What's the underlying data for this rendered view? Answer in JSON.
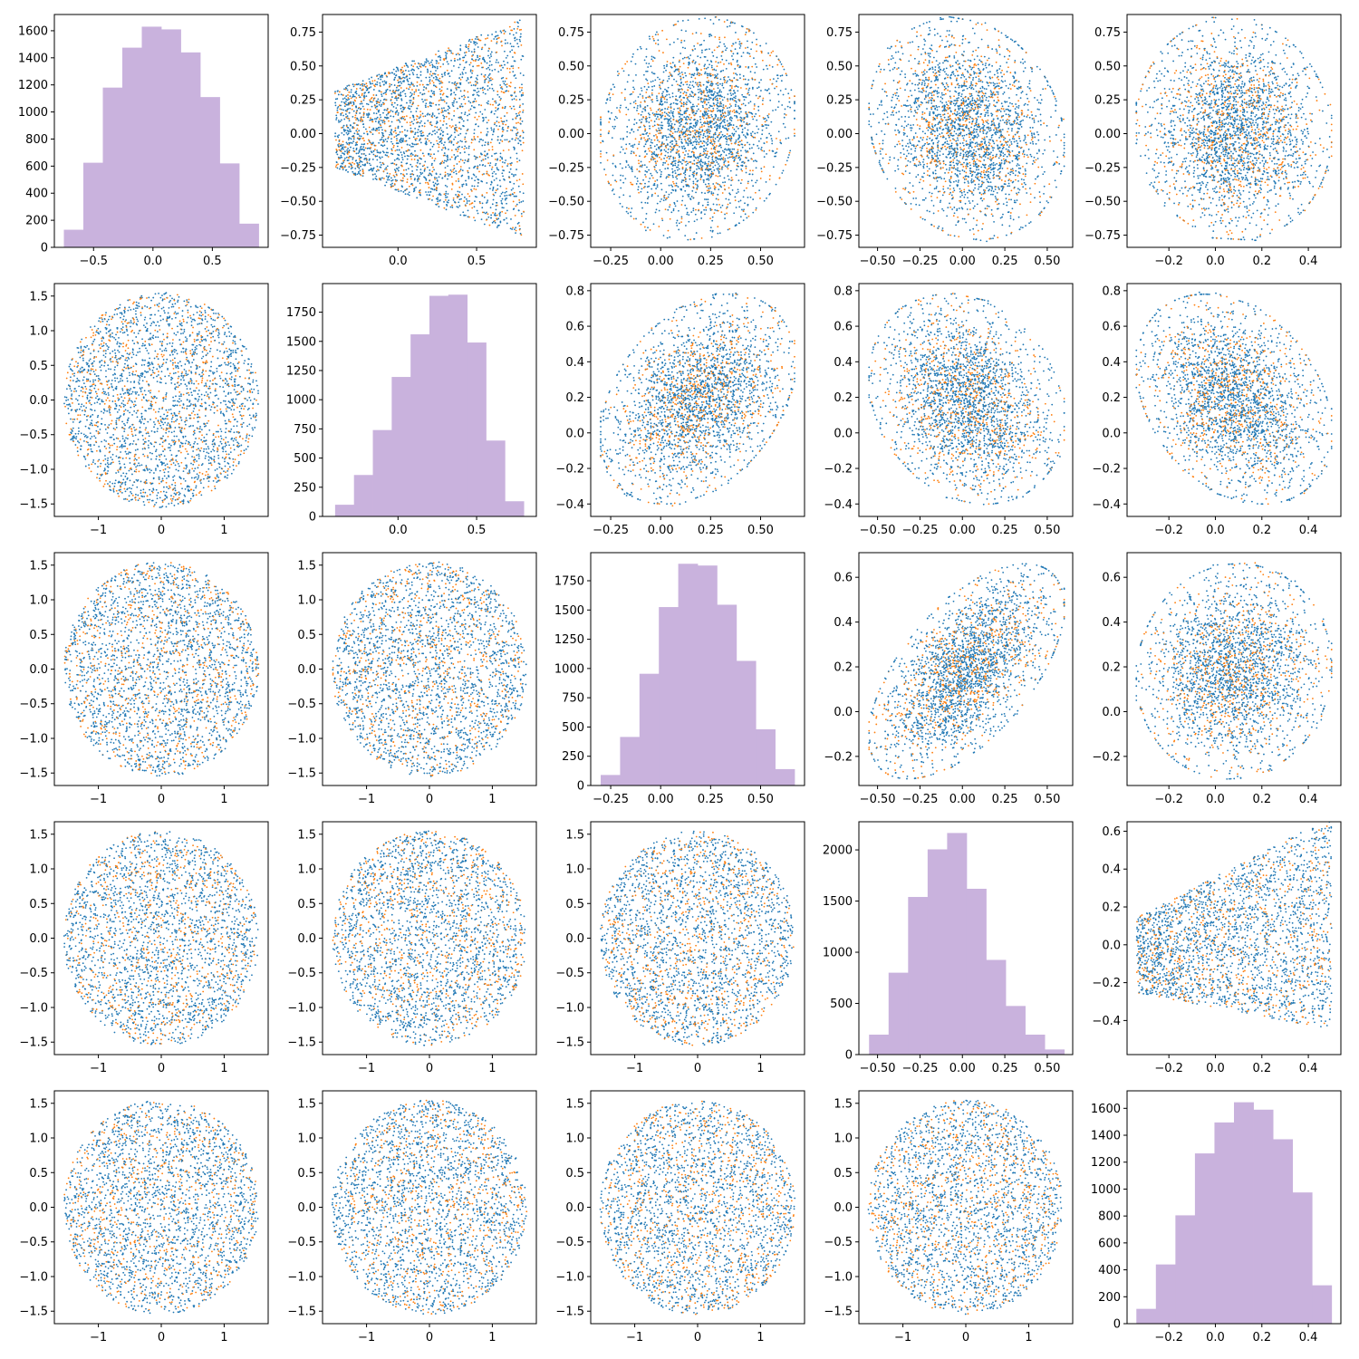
{
  "colors": {
    "series_a": "#1f77b4",
    "series_b": "#ff7f0e",
    "hist": "#c9b2dd",
    "axes": "#000000",
    "background": "#ffffff"
  },
  "figure": {
    "rows": 5,
    "cols": 5,
    "layout": "pairplot: histograms on the diagonal, scatter plots off-diagonal, two colored series",
    "grid": false,
    "legend": "none"
  },
  "chart_data": [
    {
      "row": 0,
      "col": 0,
      "type": "bar",
      "histogram": true,
      "bin_edges": [
        -0.75,
        -0.586,
        -0.422,
        -0.258,
        -0.094,
        0.07,
        0.234,
        0.398,
        0.562,
        0.726,
        0.89
      ],
      "values": [
        130,
        625,
        1180,
        1475,
        1630,
        1610,
        1440,
        1110,
        620,
        175
      ],
      "xticks": [
        -0.5,
        0.0,
        0.5
      ],
      "yticks": [
        0,
        200,
        400,
        600,
        800,
        1000,
        1200,
        1400,
        1600
      ],
      "xlim": [
        -0.83,
        0.97
      ],
      "ylim": [
        0,
        1720
      ]
    },
    {
      "row": 0,
      "col": 1,
      "type": "scatter",
      "shape": "fan",
      "xticks": [
        0.0,
        0.5
      ],
      "yticks": [
        -0.75,
        -0.5,
        -0.25,
        0.0,
        0.25,
        0.5,
        0.75
      ],
      "xlim": [
        -0.48,
        0.88
      ],
      "ylim": [
        -0.84,
        0.88
      ],
      "x_range": [
        -0.4,
        0.8
      ],
      "y_range": [
        -0.78,
        0.85
      ],
      "corr": 0
    },
    {
      "row": 0,
      "col": 2,
      "type": "scatter",
      "shape": "blob",
      "xticks": [
        -0.25,
        0.0,
        0.25,
        0.5
      ],
      "yticks": [
        -0.75,
        -0.5,
        -0.25,
        0.0,
        0.25,
        0.5,
        0.75
      ],
      "xlim": [
        -0.35,
        0.72
      ],
      "ylim": [
        -0.84,
        0.88
      ],
      "x_range": [
        -0.3,
        0.67
      ],
      "y_range": [
        -0.78,
        0.85
      ],
      "corr": 0.1
    },
    {
      "row": 0,
      "col": 3,
      "type": "scatter",
      "shape": "blob",
      "xticks": [
        -0.5,
        -0.25,
        0.0,
        0.25,
        0.5
      ],
      "yticks": [
        -0.75,
        -0.5,
        -0.25,
        0.0,
        0.25,
        0.5,
        0.75
      ],
      "xlim": [
        -0.61,
        0.65
      ],
      "ylim": [
        -0.84,
        0.88
      ],
      "x_range": [
        -0.55,
        0.6
      ],
      "y_range": [
        -0.78,
        0.85
      ],
      "corr": -0.15
    },
    {
      "row": 0,
      "col": 4,
      "type": "scatter",
      "shape": "blob",
      "xticks": [
        -0.2,
        0.0,
        0.2,
        0.4
      ],
      "yticks": [
        -0.75,
        -0.5,
        -0.25,
        0.0,
        0.25,
        0.5,
        0.75
      ],
      "xlim": [
        -0.38,
        0.54
      ],
      "ylim": [
        -0.84,
        0.88
      ],
      "x_range": [
        -0.34,
        0.5
      ],
      "y_range": [
        -0.78,
        0.85
      ],
      "corr": -0.05
    },
    {
      "row": 1,
      "col": 0,
      "type": "scatter",
      "shape": "disk",
      "xticks": [
        -1,
        0,
        1
      ],
      "yticks": [
        -1.5,
        -1.0,
        -0.5,
        0.0,
        0.5,
        1.0,
        1.5
      ],
      "xlim": [
        -1.7,
        1.7
      ],
      "ylim": [
        -1.68,
        1.68
      ],
      "x_range": [
        -1.55,
        1.55
      ],
      "y_range": [
        -1.55,
        1.55
      ],
      "corr": 0
    },
    {
      "row": 1,
      "col": 1,
      "type": "bar",
      "histogram": true,
      "bin_edges": [
        -0.4,
        -0.28,
        -0.16,
        -0.04,
        0.08,
        0.2,
        0.32,
        0.44,
        0.56,
        0.68,
        0.8
      ],
      "values": [
        100,
        355,
        740,
        1195,
        1560,
        1890,
        1900,
        1490,
        650,
        130
      ],
      "xticks": [
        0.0,
        0.5
      ],
      "yticks": [
        0,
        250,
        500,
        750,
        1000,
        1250,
        1500,
        1750
      ],
      "xlim": [
        -0.48,
        0.88
      ],
      "ylim": [
        0,
        1995
      ]
    },
    {
      "row": 1,
      "col": 2,
      "type": "scatter",
      "shape": "blob",
      "xticks": [
        -0.25,
        0.0,
        0.25,
        0.5
      ],
      "yticks": [
        -0.4,
        -0.2,
        0.0,
        0.2,
        0.4,
        0.6,
        0.8
      ],
      "xlim": [
        -0.35,
        0.72
      ],
      "ylim": [
        -0.47,
        0.84
      ],
      "x_range": [
        -0.3,
        0.67
      ],
      "y_range": [
        -0.4,
        0.78
      ],
      "corr": 0.35
    },
    {
      "row": 1,
      "col": 3,
      "type": "scatter",
      "shape": "blob",
      "xticks": [
        -0.5,
        -0.25,
        0.0,
        0.25,
        0.5
      ],
      "yticks": [
        -0.4,
        -0.2,
        0.0,
        0.2,
        0.4,
        0.6,
        0.8
      ],
      "xlim": [
        -0.61,
        0.65
      ],
      "ylim": [
        -0.47,
        0.84
      ],
      "x_range": [
        -0.55,
        0.6
      ],
      "y_range": [
        -0.4,
        0.78
      ],
      "corr": -0.2
    },
    {
      "row": 1,
      "col": 4,
      "type": "scatter",
      "shape": "blob",
      "xticks": [
        -0.2,
        0.0,
        0.2,
        0.4
      ],
      "yticks": [
        -0.4,
        -0.2,
        0.0,
        0.2,
        0.4,
        0.6,
        0.8
      ],
      "xlim": [
        -0.38,
        0.54
      ],
      "ylim": [
        -0.47,
        0.84
      ],
      "x_range": [
        -0.34,
        0.5
      ],
      "y_range": [
        -0.4,
        0.78
      ],
      "corr": -0.3
    },
    {
      "row": 2,
      "col": 0,
      "type": "scatter",
      "shape": "disk",
      "xticks": [
        -1,
        0,
        1
      ],
      "yticks": [
        -1.5,
        -1.0,
        -0.5,
        0.0,
        0.5,
        1.0,
        1.5
      ],
      "xlim": [
        -1.7,
        1.7
      ],
      "ylim": [
        -1.68,
        1.68
      ],
      "x_range": [
        -1.55,
        1.55
      ],
      "y_range": [
        -1.55,
        1.55
      ],
      "corr": 0
    },
    {
      "row": 2,
      "col": 1,
      "type": "scatter",
      "shape": "disk",
      "xticks": [
        -1,
        0,
        1
      ],
      "yticks": [
        -1.5,
        -1.0,
        -0.5,
        0.0,
        0.5,
        1.0,
        1.5
      ],
      "xlim": [
        -1.7,
        1.7
      ],
      "ylim": [
        -1.68,
        1.68
      ],
      "x_range": [
        -1.55,
        1.55
      ],
      "y_range": [
        -1.55,
        1.55
      ],
      "corr": 0
    },
    {
      "row": 2,
      "col": 2,
      "type": "bar",
      "histogram": true,
      "bin_edges": [
        -0.3,
        -0.203,
        -0.106,
        -0.009,
        0.088,
        0.185,
        0.282,
        0.379,
        0.476,
        0.573,
        0.67
      ],
      "values": [
        90,
        415,
        955,
        1525,
        1895,
        1880,
        1545,
        1065,
        480,
        140
      ],
      "xticks": [
        -0.25,
        0.0,
        0.25,
        0.5
      ],
      "yticks": [
        0,
        250,
        500,
        750,
        1000,
        1250,
        1500,
        1750
      ],
      "xlim": [
        -0.35,
        0.72
      ],
      "ylim": [
        0,
        1990
      ]
    },
    {
      "row": 2,
      "col": 3,
      "type": "scatter",
      "shape": "blob",
      "xticks": [
        -0.5,
        -0.25,
        0.0,
        0.25,
        0.5
      ],
      "yticks": [
        -0.2,
        0.0,
        0.2,
        0.4,
        0.6
      ],
      "xlim": [
        -0.61,
        0.65
      ],
      "ylim": [
        -0.33,
        0.71
      ],
      "x_range": [
        -0.55,
        0.6
      ],
      "y_range": [
        -0.3,
        0.66
      ],
      "corr": 0.6
    },
    {
      "row": 2,
      "col": 4,
      "type": "scatter",
      "shape": "blob",
      "xticks": [
        -0.2,
        0.0,
        0.2,
        0.4
      ],
      "yticks": [
        -0.2,
        0.0,
        0.2,
        0.4,
        0.6
      ],
      "xlim": [
        -0.38,
        0.54
      ],
      "ylim": [
        -0.33,
        0.71
      ],
      "x_range": [
        -0.34,
        0.5
      ],
      "y_range": [
        -0.3,
        0.66
      ],
      "corr": 0.05
    },
    {
      "row": 3,
      "col": 0,
      "type": "scatter",
      "shape": "disk",
      "xticks": [
        -1,
        0,
        1
      ],
      "yticks": [
        -1.5,
        -1.0,
        -0.5,
        0.0,
        0.5,
        1.0,
        1.5
      ],
      "xlim": [
        -1.7,
        1.7
      ],
      "ylim": [
        -1.68,
        1.68
      ],
      "x_range": [
        -1.55,
        1.55
      ],
      "y_range": [
        -1.55,
        1.55
      ],
      "corr": 0
    },
    {
      "row": 3,
      "col": 1,
      "type": "scatter",
      "shape": "disk",
      "xticks": [
        -1,
        0,
        1
      ],
      "yticks": [
        -1.5,
        -1.0,
        -0.5,
        0.0,
        0.5,
        1.0,
        1.5
      ],
      "xlim": [
        -1.7,
        1.7
      ],
      "ylim": [
        -1.68,
        1.68
      ],
      "x_range": [
        -1.55,
        1.55
      ],
      "y_range": [
        -1.55,
        1.55
      ],
      "corr": 0
    },
    {
      "row": 3,
      "col": 2,
      "type": "scatter",
      "shape": "disk",
      "xticks": [
        -1,
        0,
        1
      ],
      "yticks": [
        -1.5,
        -1.0,
        -0.5,
        0.0,
        0.5,
        1.0,
        1.5
      ],
      "xlim": [
        -1.7,
        1.7
      ],
      "ylim": [
        -1.68,
        1.68
      ],
      "x_range": [
        -1.55,
        1.55
      ],
      "y_range": [
        -1.55,
        1.55
      ],
      "corr": 0
    },
    {
      "row": 3,
      "col": 3,
      "type": "bar",
      "histogram": true,
      "bin_edges": [
        -0.55,
        -0.435,
        -0.32,
        -0.205,
        -0.09,
        0.025,
        0.14,
        0.255,
        0.37,
        0.485,
        0.6
      ],
      "values": [
        195,
        800,
        1540,
        2005,
        2165,
        1620,
        925,
        475,
        195,
        50
      ],
      "xticks": [
        -0.5,
        -0.25,
        0.0,
        0.25,
        0.5
      ],
      "yticks": [
        0,
        500,
        1000,
        1500,
        2000
      ],
      "xlim": [
        -0.61,
        0.65
      ],
      "ylim": [
        0,
        2275
      ]
    },
    {
      "row": 3,
      "col": 4,
      "type": "scatter",
      "shape": "fan",
      "xticks": [
        -0.2,
        0.0,
        0.2,
        0.4
      ],
      "yticks": [
        -0.4,
        -0.2,
        0.0,
        0.2,
        0.4,
        0.6
      ],
      "xlim": [
        -0.38,
        0.54
      ],
      "ylim": [
        -0.58,
        0.65
      ],
      "x_range": [
        -0.34,
        0.5
      ],
      "y_range": [
        -0.54,
        0.6
      ],
      "corr": 0.15
    },
    {
      "row": 4,
      "col": 0,
      "type": "scatter",
      "shape": "disk",
      "xticks": [
        -1,
        0,
        1
      ],
      "yticks": [
        -1.5,
        -1.0,
        -0.5,
        0.0,
        0.5,
        1.0,
        1.5
      ],
      "xlim": [
        -1.7,
        1.7
      ],
      "ylim": [
        -1.68,
        1.68
      ],
      "x_range": [
        -1.55,
        1.55
      ],
      "y_range": [
        -1.55,
        1.55
      ],
      "corr": 0
    },
    {
      "row": 4,
      "col": 1,
      "type": "scatter",
      "shape": "disk",
      "xticks": [
        -1,
        0,
        1
      ],
      "yticks": [
        -1.5,
        -1.0,
        -0.5,
        0.0,
        0.5,
        1.0,
        1.5
      ],
      "xlim": [
        -1.7,
        1.7
      ],
      "ylim": [
        -1.68,
        1.68
      ],
      "x_range": [
        -1.55,
        1.55
      ],
      "y_range": [
        -1.55,
        1.55
      ],
      "corr": 0
    },
    {
      "row": 4,
      "col": 2,
      "type": "scatter",
      "shape": "disk",
      "xticks": [
        -1,
        0,
        1
      ],
      "yticks": [
        -1.5,
        -1.0,
        -0.5,
        0.0,
        0.5,
        1.0,
        1.5
      ],
      "xlim": [
        -1.7,
        1.7
      ],
      "ylim": [
        -1.68,
        1.68
      ],
      "x_range": [
        -1.55,
        1.55
      ],
      "y_range": [
        -1.55,
        1.55
      ],
      "corr": 0
    },
    {
      "row": 4,
      "col": 3,
      "type": "scatter",
      "shape": "disk",
      "xticks": [
        -1,
        0,
        1
      ],
      "yticks": [
        -1.5,
        -1.0,
        -0.5,
        0.0,
        0.5,
        1.0,
        1.5
      ],
      "xlim": [
        -1.7,
        1.7
      ],
      "ylim": [
        -1.68,
        1.68
      ],
      "x_range": [
        -1.55,
        1.55
      ],
      "y_range": [
        -1.55,
        1.55
      ],
      "corr": 0
    },
    {
      "row": 4,
      "col": 4,
      "type": "bar",
      "histogram": true,
      "bin_edges": [
        -0.34,
        -0.256,
        -0.172,
        -0.088,
        -0.004,
        0.08,
        0.164,
        0.248,
        0.332,
        0.416,
        0.5
      ],
      "values": [
        110,
        440,
        805,
        1265,
        1495,
        1645,
        1590,
        1370,
        975,
        285
      ],
      "xticks": [
        -0.2,
        0.0,
        0.2,
        0.4
      ],
      "yticks": [
        0,
        200,
        400,
        600,
        800,
        1000,
        1200,
        1400,
        1600
      ],
      "xlim": [
        -0.38,
        0.54
      ],
      "ylim": [
        0,
        1730
      ]
    }
  ]
}
